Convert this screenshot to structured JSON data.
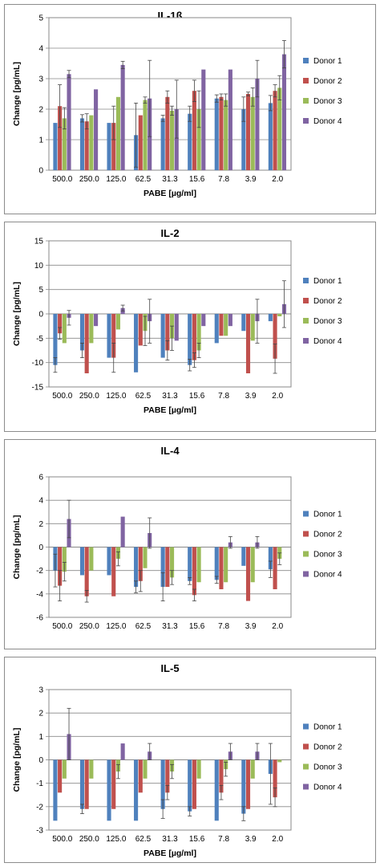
{
  "chart_data": [
    {
      "type": "bar",
      "title": "IL-1ß",
      "xlabel": "PABE [µg/ml]",
      "ylabel": "Change [pg/mL]",
      "ylim": [
        0,
        5
      ],
      "yticks": [
        0,
        1,
        2,
        3,
        4,
        5
      ],
      "grid": true,
      "legend_position": "right",
      "categories": [
        "500.0",
        "250.0",
        "125.0",
        "62.5",
        "31.3",
        "15.6",
        "7.8",
        "3.9",
        "2.0"
      ],
      "series": [
        {
          "name": "Donor 1",
          "color": "#4f81bd",
          "values": [
            1.55,
            1.7,
            1.55,
            1.15,
            1.7,
            1.85,
            2.35,
            2.0,
            2.2
          ],
          "errors": [
            0,
            0.12,
            0,
            1.05,
            0.1,
            0.25,
            0.12,
            0.4,
            0.25
          ]
        },
        {
          "name": "Donor 2",
          "color": "#c0504d",
          "values": [
            2.1,
            1.6,
            1.55,
            1.8,
            2.4,
            2.6,
            2.4,
            2.5,
            2.6
          ],
          "errors": [
            0.7,
            0.25,
            0.55,
            0,
            0.2,
            0.35,
            0.1,
            0.06,
            0.2
          ]
        },
        {
          "name": "Donor 3",
          "color": "#9bbb59",
          "values": [
            1.7,
            1.8,
            2.4,
            2.3,
            1.95,
            2.0,
            2.3,
            2.4,
            2.7
          ],
          "errors": [
            0.35,
            0,
            0,
            0.1,
            0.15,
            0.6,
            0.2,
            0.3,
            0.4
          ]
        },
        {
          "name": "Donor 4",
          "color": "#8064a2",
          "values": [
            3.15,
            2.65,
            3.45,
            2.35,
            2.0,
            3.3,
            3.3,
            3.0,
            3.8
          ],
          "errors": [
            0.12,
            0,
            0.12,
            1.25,
            0.95,
            0,
            0,
            0.6,
            0.45
          ]
        }
      ]
    },
    {
      "type": "bar",
      "title": "IL-2",
      "xlabel": "PABE [µg/ml]",
      "ylabel": "Change [pg/mL]",
      "ylim": [
        -15,
        15
      ],
      "yticks": [
        -15,
        -10,
        -5,
        0,
        5,
        10,
        15
      ],
      "grid": true,
      "legend_position": "right",
      "categories": [
        "500.0",
        "250.0",
        "125.0",
        "62.5",
        "31.3",
        "15.6",
        "7.8",
        "3.9",
        "2.0"
      ],
      "series": [
        {
          "name": "Donor 1",
          "color": "#4f81bd",
          "values": [
            -10.5,
            -7.5,
            -9.0,
            -12.0,
            -9.0,
            -10.5,
            -6.0,
            -3.5,
            -1.5
          ],
          "errors": [
            1.5,
            1.5,
            0,
            0,
            0,
            1.2,
            0,
            0,
            0
          ]
        },
        {
          "name": "Donor 2",
          "color": "#c0504d",
          "values": [
            -4.0,
            -12.2,
            -9.0,
            -6.5,
            -7.5,
            -9.5,
            -4.5,
            -12.2,
            -9.2
          ],
          "errors": [
            1.2,
            0,
            3.0,
            0,
            2.0,
            1.5,
            0,
            0,
            3.0
          ]
        },
        {
          "name": "Donor 3",
          "color": "#9bbb59",
          "values": [
            -6.0,
            -6.0,
            -3.2,
            -3.5,
            -5.0,
            -7.5,
            -4.5,
            -5.5,
            -0.5
          ],
          "errors": [
            0,
            0,
            0,
            3.0,
            2.5,
            1.5,
            0,
            0,
            0
          ]
        },
        {
          "name": "Donor 4",
          "color": "#8064a2",
          "values": [
            -0.8,
            -2.5,
            1.2,
            -1.5,
            -5.5,
            -2.5,
            -2.5,
            -1.5,
            2.0
          ],
          "errors": [
            1.5,
            0,
            0.6,
            4.5,
            0,
            0,
            0,
            4.5,
            4.8
          ]
        }
      ]
    },
    {
      "type": "bar",
      "title": "IL-4",
      "xlabel": "",
      "ylabel": "Change [pg/mL]",
      "ylim": [
        -6,
        6
      ],
      "yticks": [
        -6,
        -4,
        -2,
        0,
        2,
        4,
        6
      ],
      "grid": true,
      "legend_position": "right",
      "categories": [
        "500.0",
        "250.0",
        "125.0",
        "62.5",
        "31.3",
        "15.6",
        "7.8",
        "3.9",
        "2.0"
      ],
      "series": [
        {
          "name": "Donor 1",
          "color": "#4f81bd",
          "values": [
            -2.0,
            -2.4,
            -2.4,
            -3.4,
            -3.4,
            -2.9,
            -2.8,
            -1.6,
            -1.9
          ],
          "errors": [
            1.4,
            0,
            0,
            0.5,
            1.2,
            0.3,
            0.3,
            0,
            0.7
          ]
        },
        {
          "name": "Donor 2",
          "color": "#c0504d",
          "values": [
            -3.3,
            -4.2,
            -4.2,
            -2.9,
            -3.4,
            -4.1,
            -3.6,
            -4.6,
            -3.6
          ],
          "errors": [
            1.3,
            0.5,
            0,
            0.9,
            0,
            0.5,
            0,
            0,
            0
          ]
        },
        {
          "name": "Donor 3",
          "color": "#9bbb59",
          "values": [
            -2.1,
            -2.0,
            -1.0,
            -1.8,
            -2.6,
            -3.0,
            -3.0,
            -3.0,
            -1.0
          ],
          "errors": [
            0.8,
            0,
            0.6,
            0,
            0.6,
            0,
            0,
            0,
            0.5
          ]
        },
        {
          "name": "Donor 4",
          "color": "#8064a2",
          "values": [
            2.4,
            0,
            2.6,
            1.2,
            0,
            0,
            0.4,
            0.4,
            0
          ],
          "errors": [
            1.6,
            0,
            0,
            1.3,
            0,
            0,
            0.5,
            0.5,
            0
          ]
        }
      ]
    },
    {
      "type": "bar",
      "title": "IL-5",
      "xlabel": "PABE [µg/ml]",
      "ylabel": "Change [pg/mL]",
      "ylim": [
        -3,
        3
      ],
      "yticks": [
        -3,
        -2,
        -1,
        0,
        1,
        2,
        3
      ],
      "grid": true,
      "legend_position": "right",
      "categories": [
        "500.0",
        "250.0",
        "125.0",
        "62.5",
        "31.3",
        "15.6",
        "7.8",
        "3.9",
        "2.0"
      ],
      "series": [
        {
          "name": "Donor 1",
          "color": "#4f81bd",
          "values": [
            -2.6,
            -2.1,
            -2.6,
            -2.6,
            -2.1,
            -2.2,
            -2.6,
            -2.3,
            -0.6
          ],
          "errors": [
            0,
            0.2,
            0,
            0,
            0.4,
            0.2,
            0,
            0.3,
            1.3
          ]
        },
        {
          "name": "Donor 2",
          "color": "#c0504d",
          "values": [
            -1.4,
            -2.1,
            -2.1,
            -1.4,
            -1.4,
            -2.1,
            -1.4,
            -2.1,
            -1.6
          ],
          "errors": [
            0,
            0,
            0,
            0,
            0.3,
            0,
            0.3,
            0,
            0.4
          ]
        },
        {
          "name": "Donor 3",
          "color": "#9bbb59",
          "values": [
            -0.8,
            -0.8,
            -0.5,
            -0.8,
            -0.5,
            -0.8,
            -0.4,
            -0.8,
            -0.1
          ],
          "errors": [
            0,
            0,
            0.3,
            0,
            0.3,
            0,
            0.3,
            0,
            0
          ]
        },
        {
          "name": "Donor 4",
          "color": "#8064a2",
          "values": [
            1.1,
            0,
            0.7,
            0.35,
            0,
            0,
            0.35,
            0.35,
            0
          ],
          "errors": [
            1.1,
            0,
            0,
            0.35,
            0,
            0,
            0.35,
            0.35,
            0
          ]
        }
      ]
    }
  ]
}
